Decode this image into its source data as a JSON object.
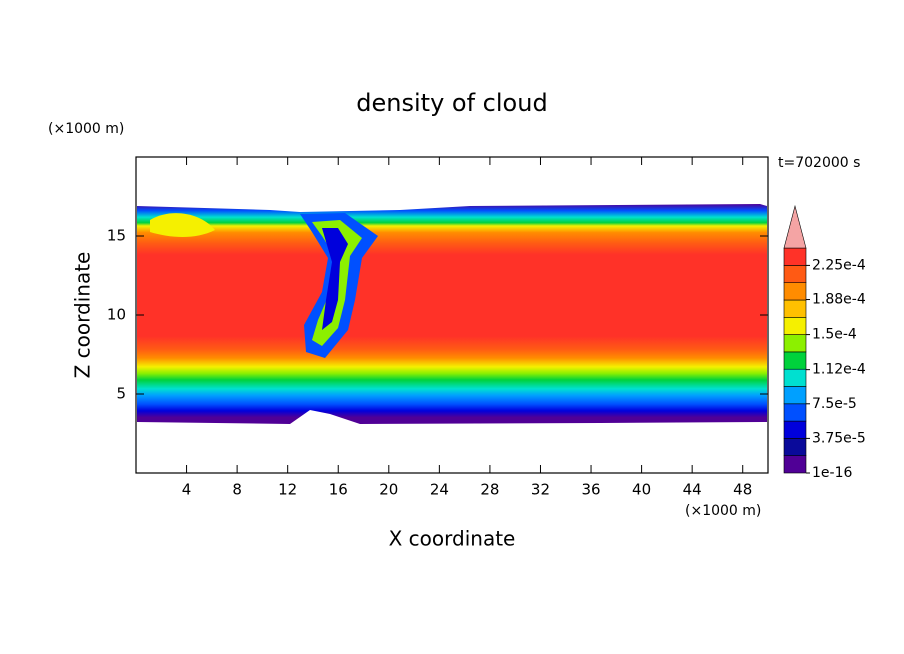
{
  "chart_data": {
    "type": "contour",
    "title": "density of cloud",
    "x_label": "X coordinate",
    "y_label": "Z coordinate",
    "x_unit": "(×1000 m)",
    "y_unit": "(×1000 m)",
    "annotation": "t=702000 s",
    "xlim": [
      0,
      50
    ],
    "ylim": [
      0,
      20
    ],
    "xticks": [
      4,
      8,
      12,
      16,
      20,
      24,
      28,
      32,
      36,
      40,
      44,
      48
    ],
    "yticks": [
      5,
      10,
      15
    ],
    "colorbar": {
      "colors": [
        "#500096",
        "#0a0a9a",
        "#0000dc",
        "#0050ff",
        "#00a0ff",
        "#00e0d0",
        "#00d23c",
        "#8cf000",
        "#f5f000",
        "#ffc000",
        "#ff8c00",
        "#ff5a14",
        "#ff3228"
      ],
      "extend_color": "#f4a4a4",
      "ticks": [
        1e-16,
        {
          "value": 3.75e-05,
          "label": "3.75e-5"
        },
        {
          "value": 7.5e-05,
          "label": "7.5e-5"
        },
        {
          "value": 0.000112,
          "label": "1.12e-4"
        },
        {
          "value": 0.00015,
          "label": "1.5e-4"
        },
        {
          "value": 0.000188,
          "label": "1.88e-4"
        },
        {
          "value": 0.000225,
          "label": "2.25e-4"
        }
      ]
    }
  }
}
